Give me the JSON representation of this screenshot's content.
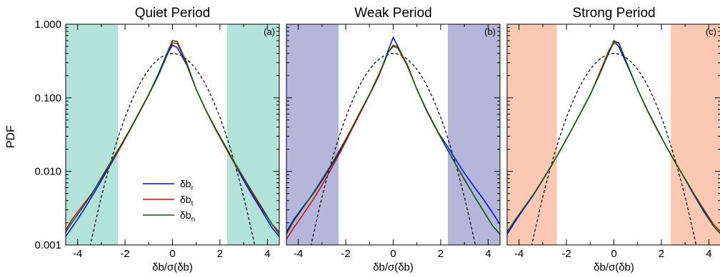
{
  "figure": {
    "ylabel": "PDF",
    "xlabel_main": "δb/σ(δb)"
  },
  "legend": [
    {
      "base": "δb",
      "sub": "r",
      "color": "#0000ff"
    },
    {
      "base": "δb",
      "sub": "t",
      "color": "#e00000"
    },
    {
      "base": "δb",
      "sub": "n",
      "color": "#006400"
    }
  ],
  "chart_data": [
    {
      "type": "line",
      "title": "Quiet Period",
      "panel_label": "(a)",
      "xlabel": "δb/σ(δb)",
      "ylabel": "PDF",
      "yscale": "log",
      "xlim": [
        -4.5,
        4.5
      ],
      "ylim": [
        0.001,
        1.0
      ],
      "xticks": [
        -4,
        -2,
        0,
        2,
        4
      ],
      "yticks": [
        0.001,
        0.01,
        0.1,
        1.0
      ],
      "yticklabels": [
        "0.001",
        "0.010",
        "0.100",
        "1.000"
      ],
      "shade": {
        "color": "#b3e3d8",
        "ranges": [
          [
            -4.5,
            -2.3
          ],
          [
            2.3,
            4.5
          ]
        ]
      },
      "gaussian": true,
      "series": [
        {
          "name": "δbr",
          "color": "#0000ff",
          "x": [
            -4.5,
            -4.2,
            -3.8,
            -3.4,
            -3.0,
            -2.6,
            -2.2,
            -1.8,
            -1.4,
            -1.0,
            -0.6,
            -0.2,
            0.0,
            0.2,
            0.6,
            1.0,
            1.4,
            1.8,
            2.2,
            2.6,
            3.0,
            3.4,
            3.8,
            4.2,
            4.5
          ],
          "y": [
            0.0013,
            0.0018,
            0.0028,
            0.0045,
            0.0075,
            0.0125,
            0.021,
            0.036,
            0.063,
            0.11,
            0.2,
            0.4,
            0.52,
            0.48,
            0.28,
            0.13,
            0.068,
            0.038,
            0.022,
            0.013,
            0.0075,
            0.0045,
            0.0028,
            0.0017,
            0.0013
          ]
        },
        {
          "name": "δbt",
          "color": "#e00000",
          "x": [
            -4.5,
            -4.2,
            -3.8,
            -3.4,
            -3.0,
            -2.6,
            -2.2,
            -1.8,
            -1.4,
            -1.0,
            -0.6,
            -0.2,
            0.0,
            0.2,
            0.6,
            1.0,
            1.4,
            1.8,
            2.2,
            2.6,
            3.0,
            3.4,
            3.8,
            4.2,
            4.5
          ],
          "y": [
            0.0016,
            0.0023,
            0.0034,
            0.005,
            0.008,
            0.013,
            0.021,
            0.036,
            0.063,
            0.11,
            0.21,
            0.42,
            0.56,
            0.55,
            0.29,
            0.13,
            0.068,
            0.038,
            0.022,
            0.013,
            0.008,
            0.0048,
            0.003,
            0.0019,
            0.0015
          ]
        },
        {
          "name": "δbn",
          "color": "#006400",
          "x": [
            -4.5,
            -4.2,
            -3.8,
            -3.4,
            -3.0,
            -2.6,
            -2.2,
            -1.8,
            -1.4,
            -1.0,
            -0.6,
            -0.2,
            0.0,
            0.2,
            0.6,
            1.0,
            1.4,
            1.8,
            2.2,
            2.6,
            3.0,
            3.4,
            3.8,
            4.2,
            4.5
          ],
          "y": [
            0.0015,
            0.0021,
            0.0032,
            0.0049,
            0.0082,
            0.0135,
            0.022,
            0.037,
            0.064,
            0.112,
            0.21,
            0.43,
            0.6,
            0.58,
            0.3,
            0.13,
            0.069,
            0.039,
            0.023,
            0.0135,
            0.0082,
            0.005,
            0.0031,
            0.0019,
            0.0014
          ]
        }
      ]
    },
    {
      "type": "line",
      "title": "Weak Period",
      "panel_label": "(b)",
      "xlabel": "δb/σ(δb)",
      "ylabel": "PDF",
      "yscale": "log",
      "xlim": [
        -4.5,
        4.5
      ],
      "ylim": [
        0.001,
        1.0
      ],
      "xticks": [
        -4,
        -2,
        0,
        2,
        4
      ],
      "yticks": [
        0.001,
        0.01,
        0.1,
        1.0
      ],
      "shade": {
        "color": "#b4b6da",
        "ranges": [
          [
            -4.5,
            -2.3
          ],
          [
            2.3,
            4.5
          ]
        ]
      },
      "gaussian": true,
      "series": [
        {
          "name": "δbr",
          "color": "#0000ff",
          "x": [
            -4.5,
            -4.2,
            -3.8,
            -3.4,
            -3.0,
            -2.6,
            -2.2,
            -1.8,
            -1.4,
            -1.0,
            -0.6,
            -0.2,
            0.0,
            0.2,
            0.6,
            1.0,
            1.4,
            1.8,
            2.2,
            2.6,
            3.0,
            3.4,
            3.8,
            4.2,
            4.5
          ],
          "y": [
            0.0015,
            0.0022,
            0.0033,
            0.0048,
            0.0075,
            0.012,
            0.02,
            0.035,
            0.062,
            0.11,
            0.2,
            0.45,
            0.66,
            0.5,
            0.27,
            0.13,
            0.067,
            0.038,
            0.024,
            0.015,
            0.0095,
            0.0062,
            0.0042,
            0.0027,
            0.0019
          ]
        },
        {
          "name": "δbt",
          "color": "#e00000",
          "x": [
            -4.5,
            -4.2,
            -3.8,
            -3.4,
            -3.0,
            -2.6,
            -2.2,
            -1.8,
            -1.4,
            -1.0,
            -0.6,
            -0.2,
            0.0,
            0.2,
            0.6,
            1.0,
            1.4,
            1.8,
            2.2,
            2.6,
            3.0,
            3.4,
            3.8,
            4.2,
            4.5
          ],
          "y": [
            0.0012,
            0.0017,
            0.0026,
            0.004,
            0.0065,
            0.011,
            0.019,
            0.034,
            0.061,
            0.11,
            0.2,
            0.42,
            0.5,
            0.47,
            0.27,
            0.13,
            0.068,
            0.038,
            0.022,
            0.013,
            0.0077,
            0.0047,
            0.0029,
            0.0018,
            0.0014
          ]
        },
        {
          "name": "δbn",
          "color": "#006400",
          "x": [
            -4.5,
            -4.2,
            -3.8,
            -3.4,
            -3.0,
            -2.6,
            -2.2,
            -1.8,
            -1.4,
            -1.0,
            -0.6,
            -0.2,
            0.0,
            0.2,
            0.6,
            1.0,
            1.4,
            1.8,
            2.2,
            2.6,
            3.0,
            3.4,
            3.8,
            4.2,
            4.5
          ],
          "y": [
            0.0014,
            0.0021,
            0.0032,
            0.0049,
            0.0078,
            0.0125,
            0.021,
            0.036,
            0.064,
            0.112,
            0.21,
            0.42,
            0.52,
            0.49,
            0.28,
            0.13,
            0.069,
            0.039,
            0.022,
            0.013,
            0.0078,
            0.0047,
            0.0029,
            0.0018,
            0.0014
          ]
        }
      ]
    },
    {
      "type": "line",
      "title": "Strong Period",
      "panel_label": "(c)",
      "xlabel": "δb/σ(δb)",
      "ylabel": "PDF",
      "yscale": "log",
      "xlim": [
        -4.5,
        4.5
      ],
      "ylim": [
        0.001,
        1.0
      ],
      "xticks": [
        -4,
        -2,
        0,
        2,
        4
      ],
      "yticks": [
        0.001,
        0.01,
        0.1,
        1.0
      ],
      "shade": {
        "color": "#fbc9b3",
        "ranges": [
          [
            -4.5,
            -2.4
          ],
          [
            2.4,
            4.5
          ]
        ]
      },
      "gaussian": true,
      "series": [
        {
          "name": "δbr",
          "color": "#0000ff",
          "x": [
            -4.5,
            -4.2,
            -3.8,
            -3.4,
            -3.0,
            -2.6,
            -2.2,
            -1.8,
            -1.4,
            -1.0,
            -0.6,
            -0.2,
            0.0,
            0.2,
            0.6,
            1.0,
            1.4,
            1.8,
            2.2,
            2.6,
            3.0,
            3.4,
            3.8,
            4.2,
            4.5
          ],
          "y": [
            0.0014,
            0.002,
            0.0031,
            0.0047,
            0.0076,
            0.0124,
            0.021,
            0.036,
            0.063,
            0.11,
            0.21,
            0.42,
            0.58,
            0.5,
            0.26,
            0.13,
            0.068,
            0.038,
            0.022,
            0.013,
            0.0078,
            0.0046,
            0.0028,
            0.0018,
            0.0014
          ]
        },
        {
          "name": "δbt",
          "color": "#e00000",
          "x": [
            -4.5,
            -4.2,
            -3.8,
            -3.4,
            -3.0,
            -2.6,
            -2.2,
            -1.8,
            -1.4,
            -1.0,
            -0.6,
            -0.2,
            0.0,
            0.2,
            0.6,
            1.0,
            1.4,
            1.8,
            2.2,
            2.6,
            3.0,
            3.4,
            3.8,
            4.2,
            4.5
          ],
          "y": [
            0.0015,
            0.0021,
            0.0032,
            0.0048,
            0.0077,
            0.0125,
            0.021,
            0.036,
            0.063,
            0.11,
            0.22,
            0.45,
            0.55,
            0.57,
            0.27,
            0.13,
            0.068,
            0.038,
            0.022,
            0.013,
            0.0079,
            0.0048,
            0.003,
            0.0019,
            0.0015
          ]
        },
        {
          "name": "δbn",
          "color": "#006400",
          "x": [
            -4.5,
            -4.2,
            -3.8,
            -3.4,
            -3.0,
            -2.6,
            -2.2,
            -1.8,
            -1.4,
            -1.0,
            -0.6,
            -0.2,
            0.0,
            0.2,
            0.6,
            1.0,
            1.4,
            1.8,
            2.2,
            2.6,
            3.0,
            3.4,
            3.8,
            4.2,
            4.5
          ],
          "y": [
            0.0015,
            0.0021,
            0.0032,
            0.0048,
            0.0077,
            0.0125,
            0.021,
            0.036,
            0.063,
            0.111,
            0.21,
            0.43,
            0.6,
            0.55,
            0.27,
            0.13,
            0.069,
            0.039,
            0.022,
            0.013,
            0.0079,
            0.0047,
            0.0029,
            0.0018,
            0.0014
          ]
        }
      ]
    }
  ]
}
